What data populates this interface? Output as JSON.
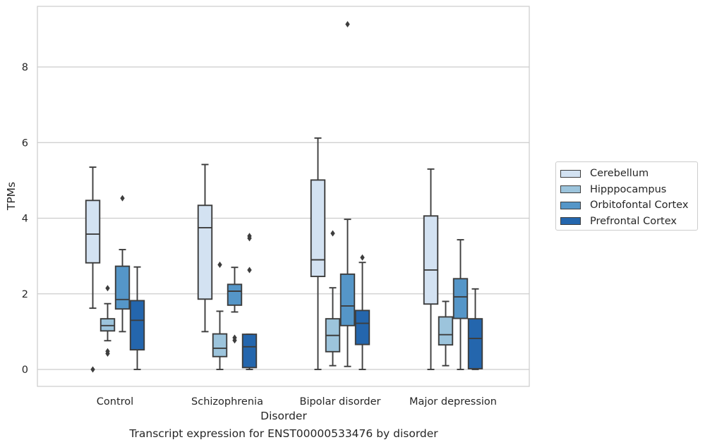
{
  "caption": "Transcript expression for ENST00000533476 by disorder",
  "chart_data": {
    "type": "box",
    "xlabel": "Disorder",
    "ylabel": "TPMs",
    "ylim": [
      -0.45,
      9.6
    ],
    "yticks": [
      0,
      2,
      4,
      6,
      8
    ],
    "grid": "horizontal",
    "legend_position": "right",
    "categories": [
      "Control",
      "Schizophrenia",
      "Bipolar disorder",
      "Major depression"
    ],
    "series": [
      {
        "name": "Cerebellum",
        "color": "#d3e2f2",
        "boxes": [
          {
            "whislo": 1.62,
            "q1": 2.82,
            "med": 3.58,
            "q3": 4.47,
            "whishi": 5.35,
            "fliers": [
              0.0
            ]
          },
          {
            "whislo": 1.0,
            "q1": 1.86,
            "med": 3.75,
            "q3": 4.34,
            "whishi": 5.42,
            "fliers": []
          },
          {
            "whislo": 0.0,
            "q1": 2.46,
            "med": 2.9,
            "q3": 5.01,
            "whishi": 6.12,
            "fliers": []
          },
          {
            "whislo": 0.0,
            "q1": 1.73,
            "med": 2.63,
            "q3": 4.06,
            "whishi": 5.3,
            "fliers": []
          }
        ]
      },
      {
        "name": "Hipppocampus",
        "color": "#9cc4dc",
        "boxes": [
          {
            "whislo": 0.76,
            "q1": 1.02,
            "med": 1.16,
            "q3": 1.34,
            "whishi": 1.74,
            "fliers": [
              2.15,
              0.42,
              0.48
            ]
          },
          {
            "whislo": 0.0,
            "q1": 0.34,
            "med": 0.56,
            "q3": 0.94,
            "whishi": 1.54,
            "fliers": [
              2.77
            ]
          },
          {
            "whislo": 0.1,
            "q1": 0.47,
            "med": 0.9,
            "q3": 1.34,
            "whishi": 2.16,
            "fliers": [
              3.6
            ]
          },
          {
            "whislo": 0.1,
            "q1": 0.65,
            "med": 0.92,
            "q3": 1.39,
            "whishi": 1.8,
            "fliers": []
          }
        ]
      },
      {
        "name": "Orbitofontal Cortex",
        "color": "#5596c8",
        "boxes": [
          {
            "whislo": 1.0,
            "q1": 1.6,
            "med": 1.85,
            "q3": 2.73,
            "whishi": 3.17,
            "fliers": [
              4.53
            ]
          },
          {
            "whislo": 1.52,
            "q1": 1.7,
            "med": 2.07,
            "q3": 2.25,
            "whishi": 2.7,
            "fliers": [
              0.84,
              0.77
            ]
          },
          {
            "whislo": 0.08,
            "q1": 1.16,
            "med": 1.68,
            "q3": 2.52,
            "whishi": 3.97,
            "fliers": [
              9.13
            ]
          },
          {
            "whislo": 0.0,
            "q1": 1.35,
            "med": 1.92,
            "q3": 2.4,
            "whishi": 3.43,
            "fliers": []
          }
        ]
      },
      {
        "name": "Prefrontal Cortex",
        "color": "#2466ad",
        "boxes": [
          {
            "whislo": 0.0,
            "q1": 0.52,
            "med": 1.3,
            "q3": 1.82,
            "whishi": 2.71,
            "fliers": []
          },
          {
            "whislo": 0.0,
            "q1": 0.05,
            "med": 0.6,
            "q3": 0.93,
            "whishi": 0.93,
            "fliers": [
              3.53,
              3.47,
              2.63
            ]
          },
          {
            "whislo": 0.0,
            "q1": 0.66,
            "med": 1.22,
            "q3": 1.56,
            "whishi": 2.83,
            "fliers": [
              2.96
            ]
          },
          {
            "whislo": 0.0,
            "q1": 0.02,
            "med": 0.82,
            "q3": 1.34,
            "whishi": 2.13,
            "fliers": []
          }
        ]
      }
    ]
  }
}
